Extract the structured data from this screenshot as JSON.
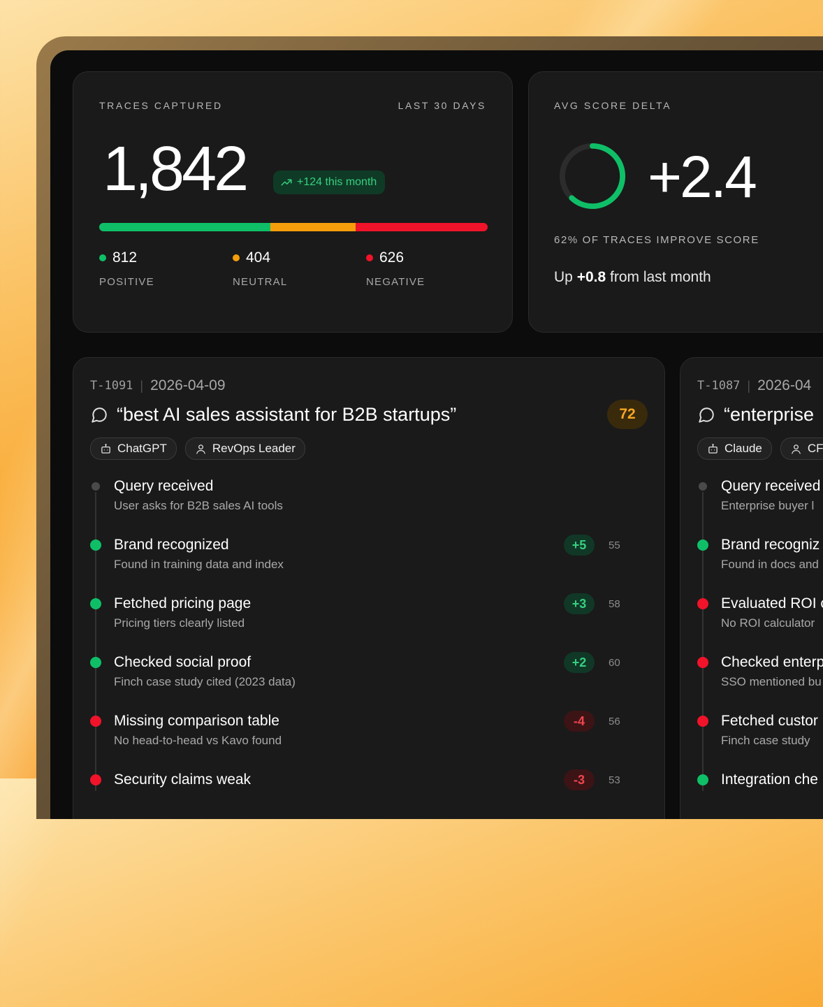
{
  "colors": {
    "positive": "#0fbf67",
    "neutral": "#f59e0b",
    "negative": "#f0132a",
    "neutral_dot": "#4a4a4a"
  },
  "traces_card": {
    "label": "TRACES CAPTURED",
    "period": "LAST 30 DAYS",
    "total": "1,842",
    "trend": "+124 this month",
    "trend_icon": "trending-up-icon",
    "distribution": {
      "positive": 812,
      "neutral": 404,
      "negative": 626
    },
    "stats": [
      {
        "value": "812",
        "label": "POSITIVE"
      },
      {
        "value": "404",
        "label": "NEUTRAL"
      },
      {
        "value": "626",
        "label": "NEGATIVE"
      }
    ]
  },
  "score_card": {
    "label": "AVG SCORE DELTA",
    "value": "+2.4",
    "ring_fraction": 0.62,
    "caption": "62% OF TRACES IMPROVE SCORE",
    "sub_prefix": "Up ",
    "sub_value": "+0.8",
    "sub_suffix": " from last month"
  },
  "traces": [
    {
      "id": "T-1091",
      "date": "2026-04-09",
      "query": "“best AI sales assistant for B2B startups”",
      "score": "72",
      "tags": [
        {
          "icon": "bot-icon",
          "label": "ChatGPT"
        },
        {
          "icon": "user-icon",
          "label": "RevOps Leader"
        }
      ],
      "steps": [
        {
          "status": "neutral",
          "title": "Query received",
          "desc": "User asks for B2B sales AI tools",
          "change": "",
          "total": ""
        },
        {
          "status": "positive",
          "title": "Brand recognized",
          "desc": "Found in training data and index",
          "change": "+5",
          "total": "55"
        },
        {
          "status": "positive",
          "title": "Fetched pricing page",
          "desc": "Pricing tiers clearly listed",
          "change": "+3",
          "total": "58"
        },
        {
          "status": "positive",
          "title": "Checked social proof",
          "desc": "Finch case study cited (2023 data)",
          "change": "+2",
          "total": "60"
        },
        {
          "status": "negative",
          "title": "Missing comparison table",
          "desc": "No head-to-head vs Kavo found",
          "change": "-4",
          "total": "56"
        },
        {
          "status": "negative",
          "title": "Security claims weak",
          "desc": "",
          "change": "-3",
          "total": "53"
        }
      ]
    },
    {
      "id": "T-1087",
      "date": "2026-04",
      "query": "“enterprise",
      "tags": [
        {
          "icon": "bot-icon",
          "label": "Claude"
        },
        {
          "icon": "user-icon",
          "label": "CF"
        }
      ],
      "steps": [
        {
          "status": "neutral",
          "title": "Query received",
          "desc": "Enterprise buyer l"
        },
        {
          "status": "positive",
          "title": "Brand recogniz",
          "desc": "Found in docs and"
        },
        {
          "status": "negative",
          "title": "Evaluated ROI c",
          "desc": "No ROI calculator"
        },
        {
          "status": "negative",
          "title": "Checked enterp",
          "desc": "SSO mentioned bu"
        },
        {
          "status": "negative",
          "title": "Fetched custor",
          "desc": "Finch case study"
        },
        {
          "status": "positive",
          "title": "Integration che",
          "desc": ""
        }
      ]
    }
  ]
}
